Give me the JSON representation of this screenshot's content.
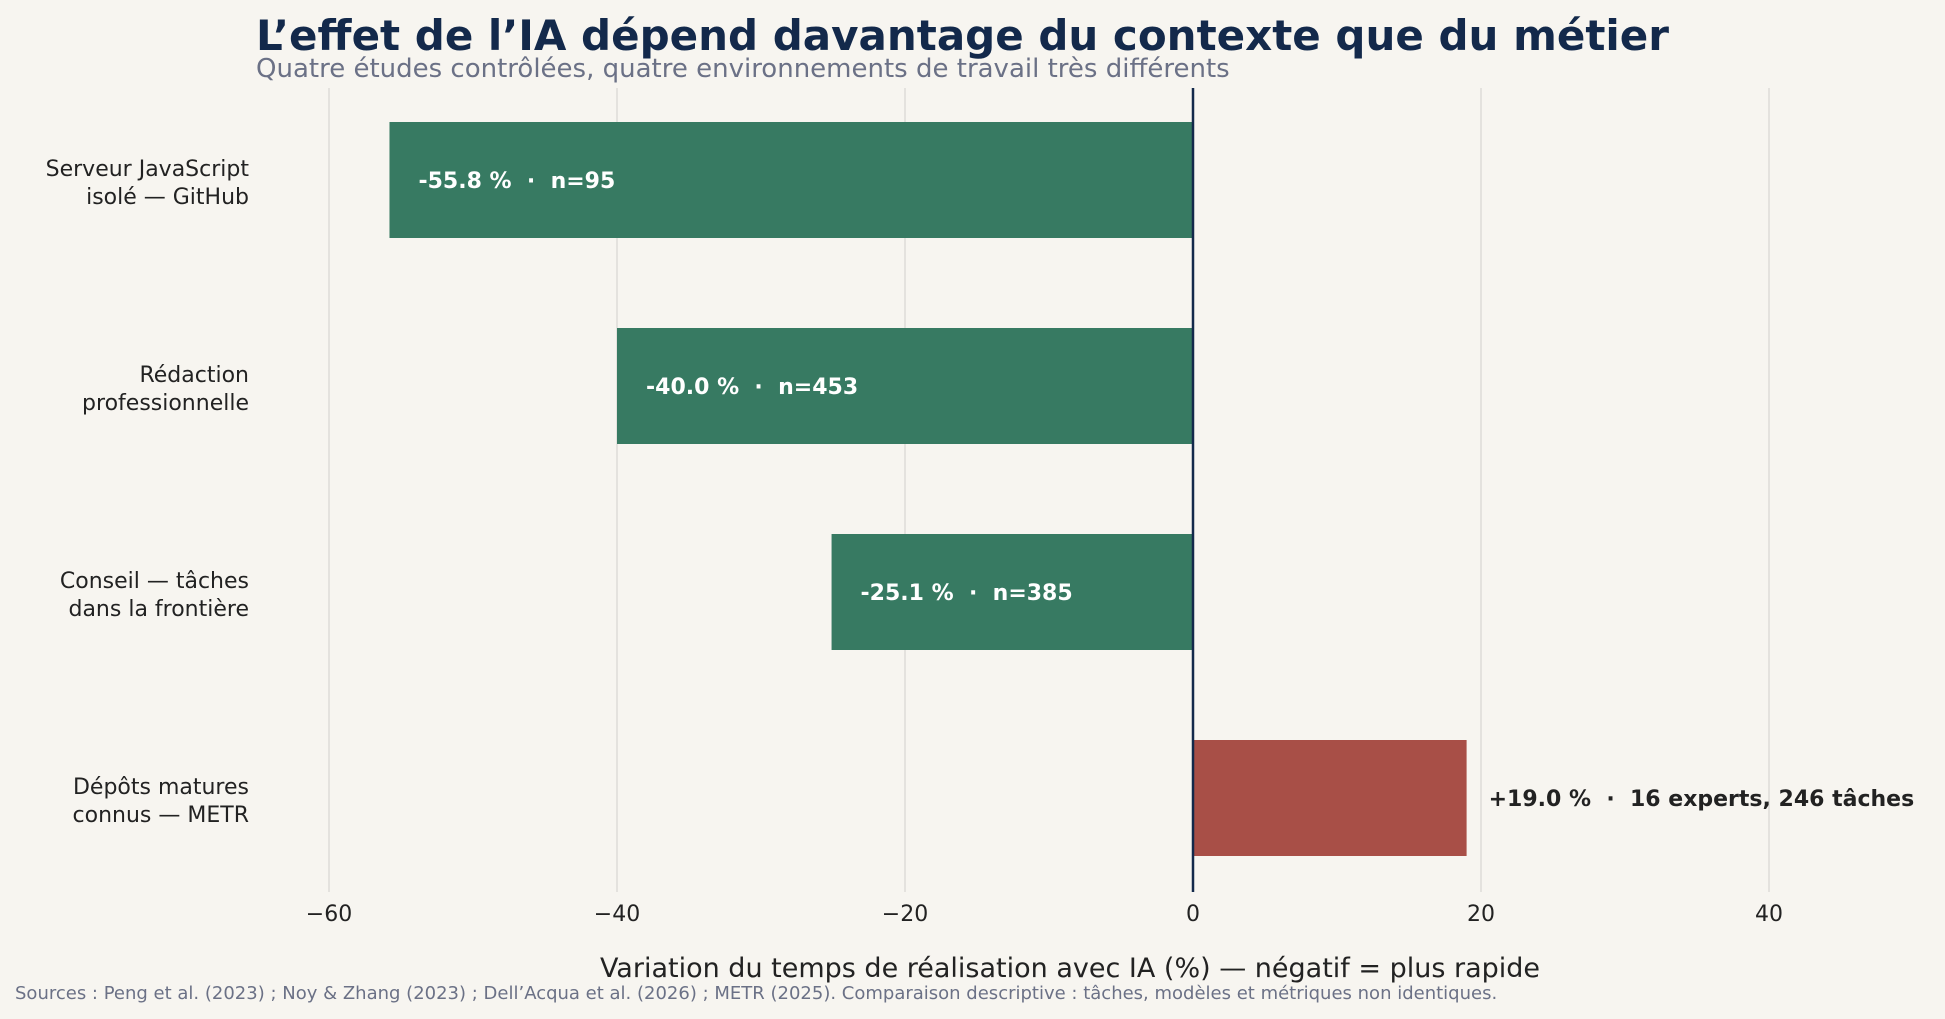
{
  "chart_data": {
    "type": "bar",
    "orientation": "horizontal",
    "title": "L’effet de l’IA dépend davantage du contexte que du métier",
    "subtitle": "Quatre études contrôlées, quatre environnements de travail très différents",
    "xlabel": "Variation du temps de réalisation avec IA (%) — négatif = plus rapide",
    "source": "Sources : Peng et al. (2023) ; Noy & Zhang (2023) ; Dell’Acqua et al. (2026) ; METR (2025). Comparaison descriptive : tâches, modèles et métriques non identiques.",
    "categories": [
      [
        "Serveur JavaScript",
        "isolé — GitHub"
      ],
      [
        "Rédaction",
        "professionnelle"
      ],
      [
        "Conseil — tâches",
        "dans la frontière"
      ],
      [
        "Dépôts matures",
        "connus — METR"
      ]
    ],
    "values": [
      -55.8,
      -40.0,
      -25.1,
      19.0
    ],
    "data_labels": [
      "-55.8 %  ·  n=95",
      "-40.0 %  ·  n=453",
      "-25.1 %  ·  n=385",
      "+19.0 %  ·  16 experts, 246 tâches"
    ],
    "xlim": [
      -80,
      52
    ],
    "xticks": [
      -60,
      -40,
      -20,
      0,
      20,
      40
    ],
    "xtick_labels": [
      "−60",
      "−40",
      "−20",
      "0",
      "20",
      "40"
    ],
    "grid": true,
    "colors": {
      "negative": "#377a62",
      "positive": "#a84f47",
      "zero_line": "#13294b",
      "grid": "#dedcd7",
      "label_inside": "#ffffff",
      "label_outside": "#222222"
    }
  }
}
